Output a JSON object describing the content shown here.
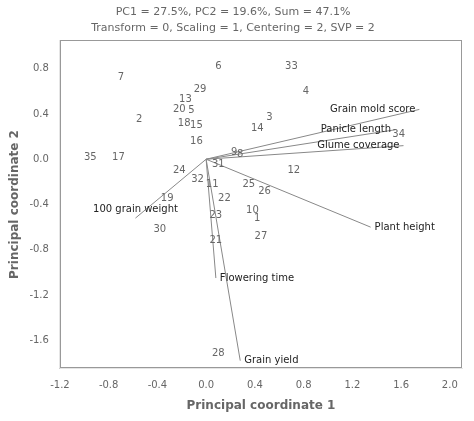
{
  "chart_data": {
    "type": "scatter",
    "title": "PC1 = 27.5%, PC2 = 19.6%, Sum = 47.1%",
    "subtitle": "Transform = 0, Scaling = 1, Centering = 2, SVP = 2",
    "xlabel": "Principal coordinate 1",
    "ylabel": "Principal coordinate 2",
    "xlim": [
      -1.2,
      2.1
    ],
    "ylim": [
      -1.85,
      1.05
    ],
    "xticks": [
      -1.2,
      -0.8,
      -0.4,
      {
        "value": 0.0,
        "label": "0.0"
      },
      0.4,
      0.8,
      1.2,
      1.6,
      {
        "value": 2.0,
        "label": "2.0"
      }
    ],
    "yticks": [
      -1.6,
      -1.2,
      -0.8,
      -0.4,
      {
        "value": 0.0,
        "label": "0.0"
      },
      0.4,
      0.8
    ],
    "grid": false,
    "origin": [
      0.0,
      0.0
    ],
    "points": [
      {
        "label": "1",
        "x": 0.42,
        "y": -0.52
      },
      {
        "label": "2",
        "x": -0.55,
        "y": 0.35
      },
      {
        "label": "3",
        "x": 0.52,
        "y": 0.37
      },
      {
        "label": "4",
        "x": 0.82,
        "y": 0.6
      },
      {
        "label": "5",
        "x": -0.12,
        "y": 0.43
      },
      {
        "label": "6",
        "x": 0.1,
        "y": 0.82
      },
      {
        "label": "7",
        "x": -0.7,
        "y": 0.72
      },
      {
        "label": "8",
        "x": 0.28,
        "y": 0.04
      },
      {
        "label": "9",
        "x": 0.23,
        "y": 0.06
      },
      {
        "label": "10",
        "x": 0.38,
        "y": -0.45
      },
      {
        "label": "11",
        "x": 0.05,
        "y": -0.22
      },
      {
        "label": "12",
        "x": 0.72,
        "y": -0.1
      },
      {
        "label": "13",
        "x": -0.17,
        "y": 0.53
      },
      {
        "label": "14",
        "x": 0.42,
        "y": 0.27
      },
      {
        "label": "15",
        "x": -0.08,
        "y": 0.3
      },
      {
        "label": "16",
        "x": -0.08,
        "y": 0.16
      },
      {
        "label": "17",
        "x": -0.72,
        "y": 0.02
      },
      {
        "label": "18",
        "x": -0.18,
        "y": 0.32
      },
      {
        "label": "19",
        "x": -0.32,
        "y": -0.35
      },
      {
        "label": "20",
        "x": -0.22,
        "y": 0.44
      },
      {
        "label": "21",
        "x": 0.08,
        "y": -0.72
      },
      {
        "label": "22",
        "x": 0.15,
        "y": -0.35
      },
      {
        "label": "23",
        "x": 0.08,
        "y": -0.5
      },
      {
        "label": "24",
        "x": -0.22,
        "y": -0.1
      },
      {
        "label": "25",
        "x": 0.35,
        "y": -0.22
      },
      {
        "label": "26",
        "x": 0.48,
        "y": -0.28
      },
      {
        "label": "27",
        "x": 0.45,
        "y": -0.68
      },
      {
        "label": "28",
        "x": 0.1,
        "y": -1.72
      },
      {
        "label": "29",
        "x": -0.05,
        "y": 0.62
      },
      {
        "label": "30",
        "x": -0.38,
        "y": -0.62
      },
      {
        "label": "31",
        "x": 0.1,
        "y": -0.05
      },
      {
        "label": "32",
        "x": -0.07,
        "y": -0.18
      },
      {
        "label": "33",
        "x": 0.7,
        "y": 0.82
      },
      {
        "label": "34",
        "x": 1.58,
        "y": 0.22
      },
      {
        "label": "35",
        "x": -0.95,
        "y": 0.02
      }
    ],
    "vectors": [
      {
        "label": "Grain mold score",
        "x": 1.75,
        "y": 0.44
      },
      {
        "label": "Panicle length",
        "x": 1.55,
        "y": 0.26
      },
      {
        "label": "Glume coverage",
        "x": 1.62,
        "y": 0.12
      },
      {
        "label": "Plant height",
        "x": 1.35,
        "y": -0.6
      },
      {
        "label": "Flowering time",
        "x": 0.08,
        "y": -1.05
      },
      {
        "label": "Grain yield",
        "x": 0.28,
        "y": -1.78
      },
      {
        "label": "100 grain weight",
        "x": -0.58,
        "y": -0.52
      }
    ]
  }
}
